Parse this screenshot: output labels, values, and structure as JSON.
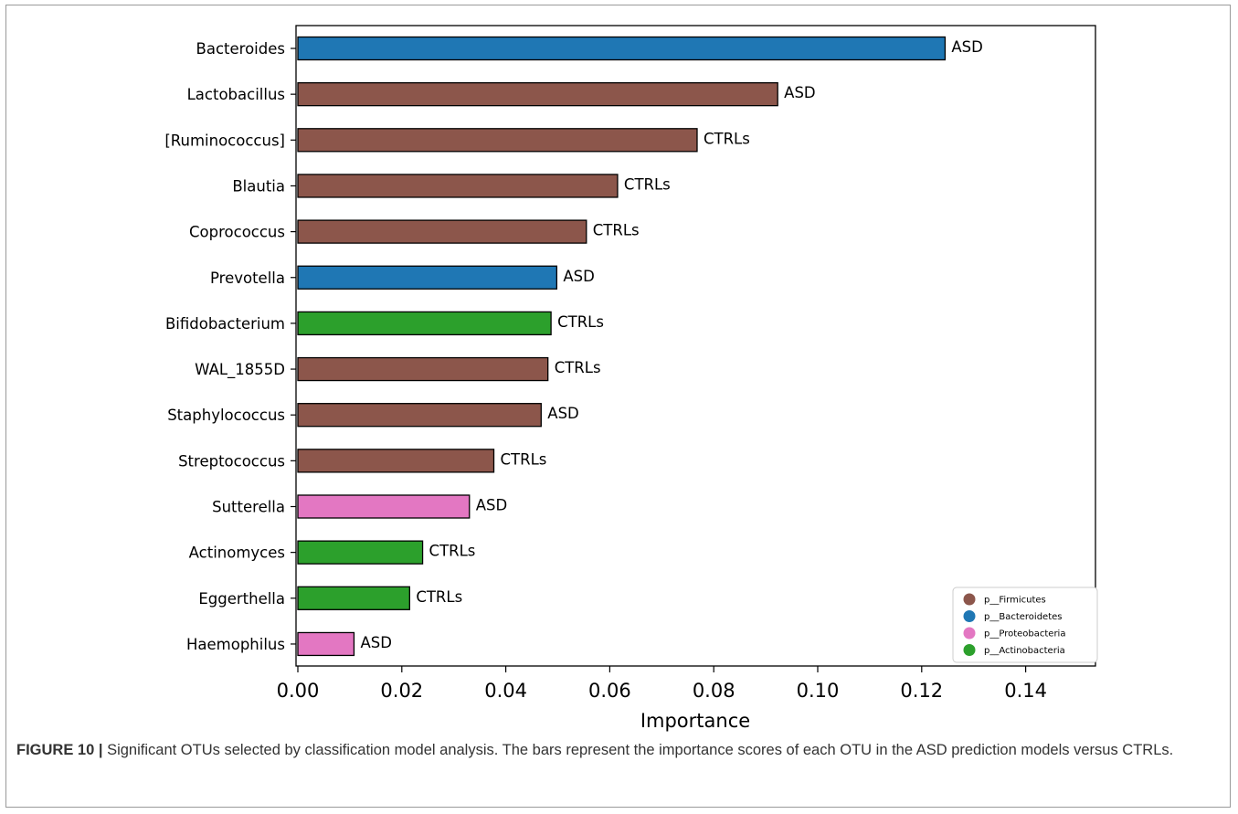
{
  "chart_data": {
    "type": "bar",
    "orientation": "horizontal",
    "xlabel": "Importance",
    "ylabel": "",
    "xlim": [
      0,
      0.15
    ],
    "xticks": [
      0.0,
      0.02,
      0.04,
      0.06,
      0.08,
      0.1,
      0.12,
      0.14
    ],
    "xtick_labels": [
      "0.00",
      "0.02",
      "0.04",
      "0.06",
      "0.08",
      "0.10",
      "0.12",
      "0.14"
    ],
    "grid": false,
    "legend_position": "bottom-right",
    "colors": {
      "Firmicutes": "#8c564b",
      "Bacteroidetes": "#1f77b4",
      "Proteobacteria": "#e377c2",
      "Actinobacteria": "#2ca02c"
    },
    "legend": [
      {
        "label": "p__Firmicutes",
        "phylum": "Firmicutes"
      },
      {
        "label": "p__Bacteroidetes",
        "phylum": "Bacteroidetes"
      },
      {
        "label": "p__Proteobacteria",
        "phylum": "Proteobacteria"
      },
      {
        "label": "p__Actinobacteria",
        "phylum": "Actinobacteria"
      }
    ],
    "bars": [
      {
        "category": "Bacteroides",
        "value": 0.1245,
        "group": "ASD",
        "phylum": "Bacteroidetes"
      },
      {
        "category": "Lactobacillus",
        "value": 0.0923,
        "group": "ASD",
        "phylum": "Firmicutes"
      },
      {
        "category": "[Ruminococcus]",
        "value": 0.0768,
        "group": "CTRLs",
        "phylum": "Firmicutes"
      },
      {
        "category": "Blautia",
        "value": 0.0615,
        "group": "CTRLs",
        "phylum": "Firmicutes"
      },
      {
        "category": "Coprococcus",
        "value": 0.0555,
        "group": "CTRLs",
        "phylum": "Firmicutes"
      },
      {
        "category": "Prevotella",
        "value": 0.0498,
        "group": "ASD",
        "phylum": "Bacteroidetes"
      },
      {
        "category": "Bifidobacterium",
        "value": 0.0487,
        "group": "CTRLs",
        "phylum": "Actinobacteria"
      },
      {
        "category": "WAL_1855D",
        "value": 0.0481,
        "group": "CTRLs",
        "phylum": "Firmicutes"
      },
      {
        "category": "Staphylococcus",
        "value": 0.0468,
        "group": "ASD",
        "phylum": "Firmicutes"
      },
      {
        "category": "Streptococcus",
        "value": 0.0377,
        "group": "CTRLs",
        "phylum": "Firmicutes"
      },
      {
        "category": "Sutterella",
        "value": 0.033,
        "group": "ASD",
        "phylum": "Proteobacteria"
      },
      {
        "category": "Actinomyces",
        "value": 0.024,
        "group": "CTRLs",
        "phylum": "Actinobacteria"
      },
      {
        "category": "Eggerthella",
        "value": 0.0215,
        "group": "CTRLs",
        "phylum": "Actinobacteria"
      },
      {
        "category": "Haemophilus",
        "value": 0.0108,
        "group": "ASD",
        "phylum": "Proteobacteria"
      }
    ]
  },
  "caption": {
    "label": "FIGURE 10 |",
    "text": "Significant OTUs selected by classification model analysis. The bars represent the importance scores of each OTU in the ASD prediction models versus CTRLs."
  }
}
